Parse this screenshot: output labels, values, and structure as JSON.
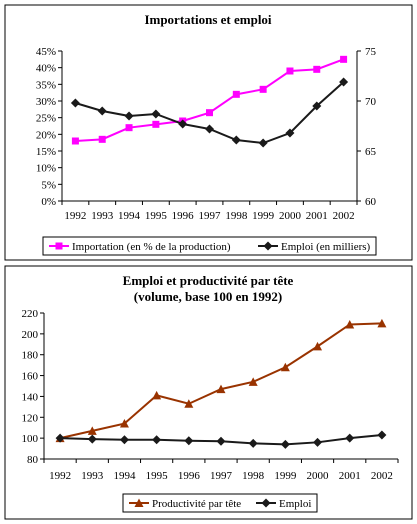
{
  "chart_data": [
    {
      "type": "line",
      "title": "Importations et emploi",
      "x": [
        "1992",
        "1993",
        "1994",
        "1995",
        "1996",
        "1997",
        "1998",
        "1999",
        "2000",
        "2001",
        "2002"
      ],
      "y_left_ticks": [
        "0%",
        "5%",
        "10%",
        "15%",
        "20%",
        "25%",
        "30%",
        "35%",
        "40%",
        "45%"
      ],
      "y_right_ticks": [
        "60",
        "65",
        "70",
        "75"
      ],
      "ylim_left": [
        0,
        45
      ],
      "ylim_right": [
        60,
        75
      ],
      "grid": false,
      "legend_position": "bottom",
      "series": [
        {
          "name": "Importation (en % de la production)",
          "axis": "left",
          "color": "#ff00ff",
          "marker": "square",
          "values": [
            18,
            18.5,
            22,
            23,
            24,
            26.5,
            32,
            33.5,
            39,
            39.5,
            42.5
          ]
        },
        {
          "name": "Emploi (en milliers)",
          "axis": "right",
          "color": "#1a1a1a",
          "marker": "diamond",
          "values": [
            69.8,
            69,
            68.5,
            68.7,
            67.7,
            67.2,
            66.1,
            65.8,
            66.8,
            69.5,
            71.9
          ]
        }
      ]
    },
    {
      "type": "line",
      "title": "Emploi et productivité par tête",
      "subtitle": "(volume, base 100 en 1992)",
      "x": [
        "1992",
        "1993",
        "1994",
        "1995",
        "1996",
        "1997",
        "1998",
        "1999",
        "2000",
        "2001",
        "2002"
      ],
      "y_ticks": [
        "80",
        "100",
        "120",
        "140",
        "160",
        "180",
        "200",
        "220"
      ],
      "ylim": [
        80,
        220
      ],
      "grid": false,
      "legend_position": "bottom",
      "series": [
        {
          "name": "Productivité par tête",
          "color": "#993300",
          "marker": "triangle",
          "values": [
            100,
            107,
            114,
            141,
            133,
            147,
            154,
            168,
            188,
            209,
            210
          ]
        },
        {
          "name": "Emploi",
          "color": "#1a1a1a",
          "marker": "diamond",
          "values": [
            100,
            99,
            98.5,
            98.5,
            97.5,
            97,
            95,
            94,
            96,
            100,
            103
          ]
        }
      ]
    }
  ]
}
